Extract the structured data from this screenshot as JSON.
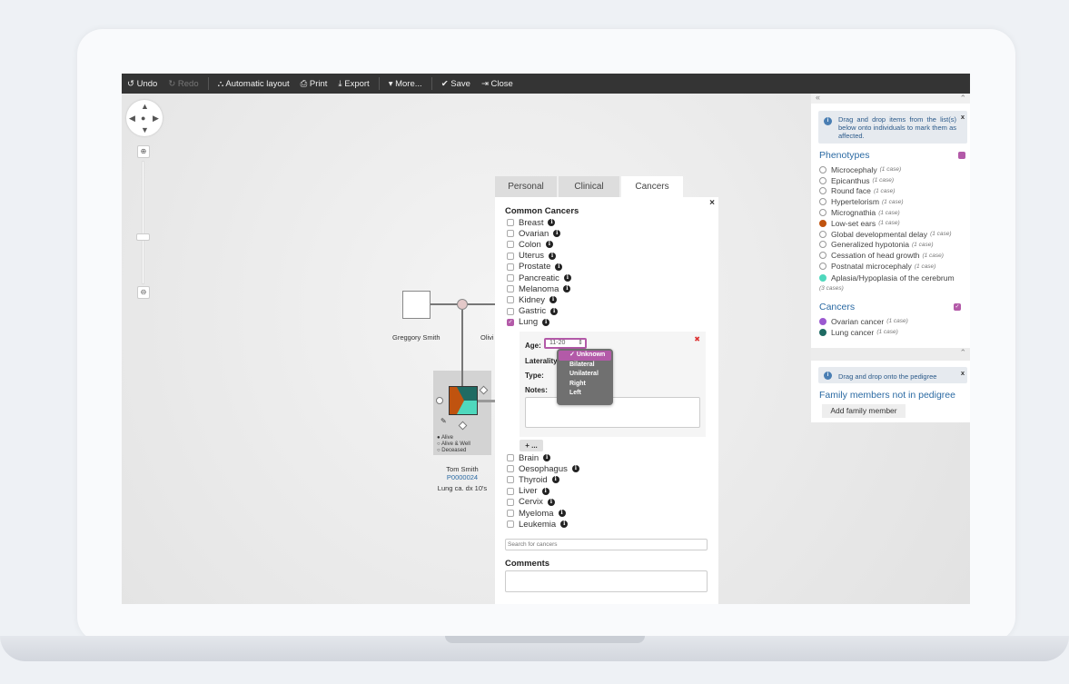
{
  "toolbar": {
    "undo": "↺ Undo",
    "redo": "↻ Redo",
    "layout": "⛬ Automatic layout",
    "print": "⎙ Print",
    "export": "⤓ Export",
    "more": "▾ More...",
    "save": "✔ Save",
    "close": "⇥ Close"
  },
  "pedigree": {
    "person1": "Greggory Smith",
    "person2": "Olivi",
    "proband": {
      "name": "Tom Smith",
      "id": "P0000024",
      "note": "Lung ca. dx 10's",
      "status_options": [
        "Alive",
        "Alive & Well",
        "Deceased"
      ],
      "status_selected": "Alive"
    }
  },
  "dialog": {
    "tabs": [
      "Personal",
      "Clinical",
      "Cancers"
    ],
    "active_tab": "Cancers",
    "close": "×",
    "common_heading": "Common Cancers",
    "cancers_top": [
      {
        "label": "Breast",
        "checked": false
      },
      {
        "label": "Ovarian",
        "checked": false
      },
      {
        "label": "Colon",
        "checked": false
      },
      {
        "label": "Uterus",
        "checked": false
      },
      {
        "label": "Prostate",
        "checked": false
      },
      {
        "label": "Pancreatic",
        "checked": false
      },
      {
        "label": "Melanoma",
        "checked": false
      },
      {
        "label": "Kidney",
        "checked": false
      },
      {
        "label": "Gastric",
        "checked": false
      },
      {
        "label": "Lung",
        "checked": true
      }
    ],
    "detail": {
      "age_label": "Age:",
      "age_value": "11-20",
      "laterality_label": "Laterality:",
      "type_label": "Type:",
      "notes_label": "Notes:",
      "remove": "✖",
      "laterality_options": [
        "Unknown",
        "Bilateral",
        "Unilateral",
        "Right",
        "Left"
      ],
      "laterality_selected": "Unknown"
    },
    "add_button": "+ ...",
    "cancers_bottom": [
      {
        "label": "Brain"
      },
      {
        "label": "Oesophagus"
      },
      {
        "label": "Thyroid"
      },
      {
        "label": "Liver"
      },
      {
        "label": "Cervix"
      },
      {
        "label": "Myeloma"
      },
      {
        "label": "Leukemia"
      }
    ],
    "search_placeholder": "Search for cancers",
    "comments_heading": "Comments"
  },
  "sidebar": {
    "collapse": "«",
    "up": "⌃",
    "hint": "Drag and drop items from the list(s) below onto individuals to mark them as affected.",
    "hint_close": "x",
    "phenotypes_title": "Phenotypes",
    "phenotypes": [
      {
        "label": "Microcephaly",
        "count": "(1 case)",
        "color": ""
      },
      {
        "label": "Epicanthus",
        "count": "(1 case)",
        "color": ""
      },
      {
        "label": "Round face",
        "count": "(1 case)",
        "color": ""
      },
      {
        "label": "Hypertelorism",
        "count": "(1 case)",
        "color": ""
      },
      {
        "label": "Micrognathia",
        "count": "(1 case)",
        "color": ""
      },
      {
        "label": "Low-set ears",
        "count": "(1 case)",
        "color": "#c0530f"
      },
      {
        "label": "Global developmental delay",
        "count": "(1 case)",
        "color": ""
      },
      {
        "label": "Generalized hypotonia",
        "count": "(1 case)",
        "color": ""
      },
      {
        "label": "Cessation of head growth",
        "count": "(1 case)",
        "color": ""
      },
      {
        "label": "Postnatal microcephaly",
        "count": "(1 case)",
        "color": ""
      },
      {
        "label": "Aplasia/Hypoplasia of the cerebrum",
        "count": "(3 cases)",
        "color": "#4fd8bd"
      }
    ],
    "cancers_title": "Cancers",
    "cancers": [
      {
        "label": "Ovarian cancer",
        "count": "(1 case)",
        "color": "#9b59d0"
      },
      {
        "label": "Lung cancer",
        "count": "(1 case)",
        "color": "#1f6b63"
      }
    ],
    "hint2": "Drag and drop onto the pedigree",
    "hint2_close": "x",
    "family_title": "Family members not in pedigree",
    "add_member": "Add family member"
  },
  "colors": {
    "accent": "#b35aa8",
    "link": "#2b6aa3",
    "toolbar": "#343434"
  }
}
